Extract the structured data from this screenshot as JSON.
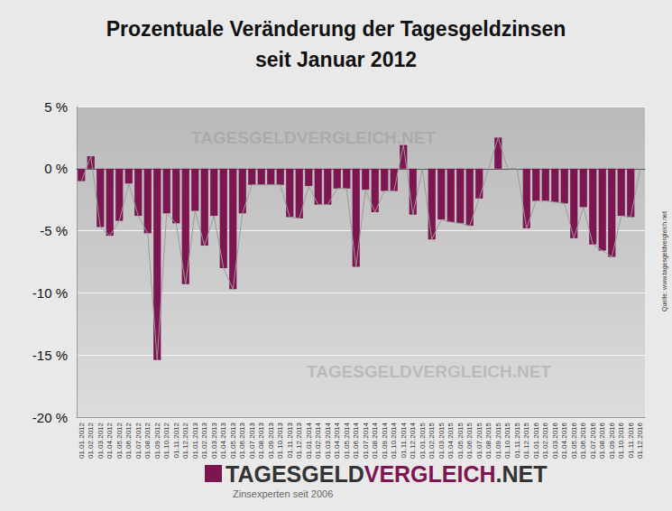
{
  "chart_data": {
    "type": "bar",
    "title": "Prozentuale Veränderung der Tagesgeldzinsen\nseit Januar 2012",
    "watermark": "TAGESGELDVERGLEICH.NET",
    "logo": [
      "TAGESGELD",
      "VERGLEICH",
      ".NET"
    ],
    "tagline": "Zinsexperten seit 2006",
    "source": "Quelle: www.tagesgeldvergleich.net",
    "categories": [
      "01.01.2012",
      "01.02.2012",
      "01.03.2012",
      "01.04.2012",
      "01.05.2012",
      "01.06.2012",
      "01.07.2012",
      "01.08.2012",
      "01.09.2012",
      "01.10.2012",
      "01.11.2012",
      "01.12.2012",
      "01.01.2013",
      "01.02.2013",
      "01.03.2013",
      "01.04.2013",
      "01.05.2013",
      "01.06.2013",
      "01.07.2013",
      "01.08.2013",
      "01.09.2013",
      "01.10.2013",
      "01.11.2013",
      "01.12.2013",
      "01.01.2014",
      "01.02.2014",
      "01.03.2014",
      "01.04.2014",
      "01.05.2014",
      "01.06.2014",
      "01.07.2014",
      "01.08.2014",
      "01.09.2014",
      "01.10.2014",
      "01.11.2014",
      "01.12.2014",
      "01.01.2015",
      "01.02.2015",
      "01.03.2015",
      "01.04.2015",
      "01.05.2015",
      "01.06.2015",
      "01.07.2015",
      "01.08.2015",
      "01.09.2015",
      "01.10.2015",
      "01.11.2015",
      "01.12.2015",
      "01.01.2016",
      "01.02.2016",
      "01.03.2016",
      "01.04.2016",
      "01.05.2016",
      "01.06.2016",
      "01.07.2016",
      "01.08.2016",
      "01.09.2016",
      "01.10.2016",
      "01.11.2016",
      "01.12.2016"
    ],
    "values": [
      -1.0,
      1.0,
      -4.7,
      -5.4,
      -4.2,
      -1.2,
      -3.8,
      -5.2,
      -15.4,
      -3.6,
      -4.4,
      -9.3,
      -3.4,
      -6.2,
      -3.8,
      -8.0,
      -9.7,
      -3.6,
      -1.3,
      -1.3,
      -1.3,
      -1.3,
      -3.9,
      -4.0,
      -1.4,
      -2.9,
      -2.9,
      -1.6,
      -1.6,
      -7.9,
      -1.7,
      -3.5,
      -1.8,
      -1.8,
      1.9,
      -3.7,
      0,
      -5.7,
      -4.1,
      -4.3,
      -4.4,
      -4.6,
      -2.4,
      0,
      2.5,
      0,
      0,
      -4.8,
      -2.6,
      -2.6,
      -2.7,
      -2.8,
      -5.6,
      -3.1,
      -6.1,
      -6.6,
      -7.1,
      -3.8,
      -3.9,
      0
    ],
    "color": "#7d1650",
    "line_style": "solid",
    "ylim": [
      -20,
      5
    ],
    "yticks": [
      {
        "value": -20,
        "label": "-20 %"
      },
      {
        "value": -15,
        "label": "-15 %"
      },
      {
        "value": -10,
        "label": "-10 %"
      },
      {
        "value": -5,
        "label": "-5 %"
      },
      {
        "value": 0,
        "label": "0 %"
      },
      {
        "value": 5,
        "label": "5 %"
      }
    ],
    "grid": true
  }
}
